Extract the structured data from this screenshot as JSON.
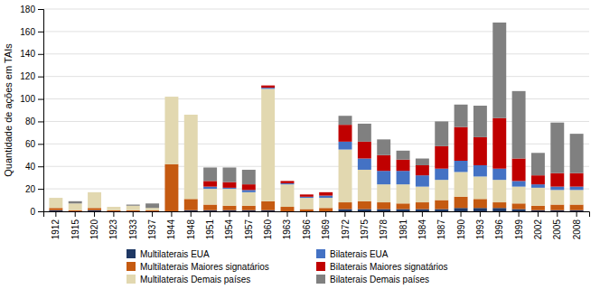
{
  "chart_data": {
    "type": "bar",
    "stacked": true,
    "y_label": "Quantidade de ações em TAIs",
    "categories": [
      "1912",
      "1915",
      "1920",
      "1923",
      "1933",
      "1937",
      "1944",
      "1948",
      "1951",
      "1954",
      "1957",
      "1960",
      "1963",
      "1966",
      "1969",
      "1972",
      "1975",
      "1978",
      "1981",
      "1984",
      "1987",
      "1990",
      "1993",
      "1996",
      "1999",
      "2002",
      "2005",
      "2008"
    ],
    "series": [
      {
        "name": "Multilaterais EUA",
        "color": "#1f3864",
        "values": [
          1,
          0,
          1,
          0,
          0,
          0,
          0,
          1,
          1,
          1,
          1,
          1,
          0,
          0,
          0,
          2,
          2,
          2,
          2,
          2,
          2,
          3,
          3,
          3,
          2,
          1,
          1,
          1
        ]
      },
      {
        "name": "Multilaterais Maiores signatários",
        "color": "#c55a11",
        "values": [
          2,
          1,
          2,
          1,
          1,
          1,
          42,
          10,
          5,
          4,
          4,
          8,
          4,
          2,
          3,
          6,
          7,
          6,
          5,
          6,
          8,
          10,
          8,
          5,
          5,
          4,
          5,
          5
        ]
      },
      {
        "name": "Multilaterais Demais países",
        "color": "#e2d8b0",
        "values": [
          9,
          6,
          14,
          3,
          4,
          2,
          60,
          75,
          14,
          15,
          12,
          100,
          20,
          10,
          9,
          47,
          28,
          16,
          17,
          14,
          18,
          22,
          20,
          20,
          15,
          16,
          13,
          13
        ]
      },
      {
        "name": "Bilaterais EUA",
        "color": "#4472c4",
        "values": [
          0,
          0,
          0,
          0,
          0,
          0,
          0,
          0,
          2,
          1,
          2,
          1,
          1,
          1,
          2,
          7,
          10,
          12,
          12,
          10,
          10,
          10,
          10,
          10,
          5,
          3,
          3,
          3
        ]
      },
      {
        "name": "Bilaterais Maiores signatários",
        "color": "#c00000",
        "values": [
          0,
          0,
          0,
          0,
          0,
          0,
          0,
          0,
          5,
          5,
          5,
          2,
          2,
          2,
          3,
          15,
          15,
          14,
          10,
          9,
          20,
          30,
          25,
          45,
          20,
          8,
          12,
          12
        ]
      },
      {
        "name": "Bilaterais Demais países",
        "color": "#808080",
        "values": [
          0,
          2,
          0,
          0,
          1,
          4,
          0,
          0,
          12,
          13,
          13,
          0,
          0,
          0,
          0,
          8,
          16,
          14,
          8,
          6,
          22,
          20,
          28,
          85,
          60,
          20,
          45,
          35
        ]
      }
    ],
    "ylim": [
      0,
      180
    ],
    "yticks": [
      0,
      20,
      40,
      60,
      80,
      100,
      120,
      140,
      160,
      180
    ],
    "grid": true,
    "legend": "bottom"
  }
}
